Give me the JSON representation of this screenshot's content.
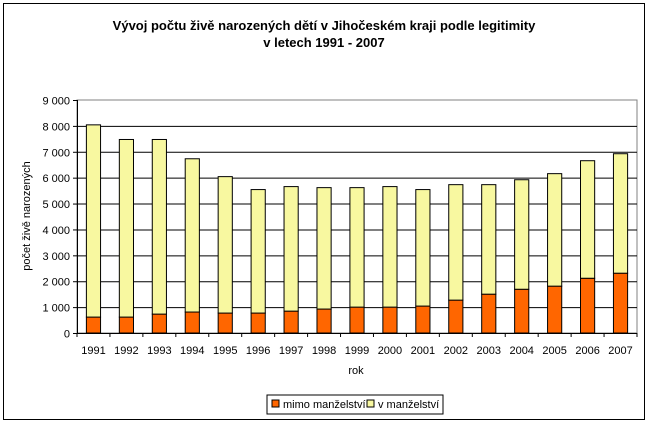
{
  "chart_data": {
    "type": "bar",
    "stacked": true,
    "title": "Vývoj počtu živě narozených dětí v Jihočeském kraji podle legitimity",
    "subtitle": "v letech 1991 - 2007",
    "xlabel": "rok",
    "ylabel": "počet živě narozených",
    "ylim": [
      0,
      9000
    ],
    "yticks": [
      "0",
      "1 000",
      "2 000",
      "3 000",
      "4 000",
      "5 000",
      "6 000",
      "7 000",
      "8 000",
      "9 000"
    ],
    "grid": true,
    "legend_position": "bottom",
    "categories": [
      "1991",
      "1992",
      "1993",
      "1994",
      "1995",
      "1996",
      "1997",
      "1998",
      "1999",
      "2000",
      "2001",
      "2002",
      "2003",
      "2004",
      "2005",
      "2006",
      "2007"
    ],
    "series": [
      {
        "name": "mimo manželství",
        "color": "#FF6600",
        "values": [
          615,
          615,
          730,
          810,
          770,
          770,
          845,
          925,
          1000,
          1000,
          1040,
          1270,
          1500,
          1690,
          1810,
          2115,
          2310
        ]
      },
      {
        "name": "v manželství",
        "color": "#F8F8A0",
        "values": [
          7425,
          6860,
          6745,
          5920,
          5270,
          4770,
          4810,
          4690,
          4615,
          4655,
          4500,
          4460,
          4230,
          4230,
          4345,
          4540,
          4615
        ]
      }
    ]
  }
}
